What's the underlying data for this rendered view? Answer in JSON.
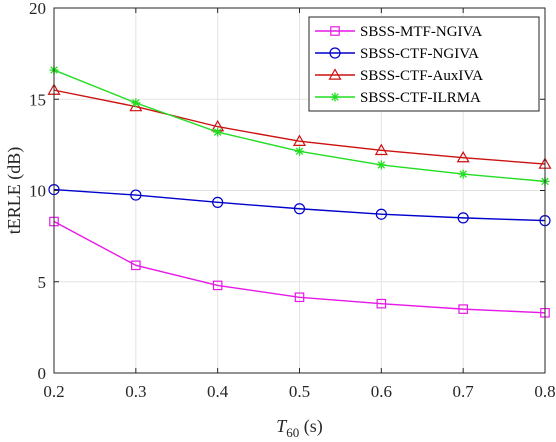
{
  "chart_data": {
    "type": "line",
    "title": "",
    "xlabel_main": "T",
    "xlabel_sub": "60",
    "xlabel_unit": " (s)",
    "ylabel": "tERLE (dB)",
    "xlim": [
      0.2,
      0.8
    ],
    "ylim": [
      0,
      20
    ],
    "xticks": [
      "0.2",
      "0.3",
      "0.4",
      "0.5",
      "0.6",
      "0.7",
      "0.8"
    ],
    "yticks": [
      "0",
      "5",
      "10",
      "15",
      "20"
    ],
    "grid": true,
    "legend_position": "top-right",
    "x": [
      0.2,
      0.3,
      0.4,
      0.5,
      0.6,
      0.7,
      0.8
    ],
    "series": [
      {
        "name": "SBSS-MTF-NGIVA",
        "values": [
          8.3,
          5.9,
          4.8,
          4.15,
          3.8,
          3.5,
          3.3
        ],
        "color": "#e619e6",
        "marker": "square"
      },
      {
        "name": "SBSS-CTF-NGIVA",
        "values": [
          10.05,
          9.75,
          9.35,
          9.0,
          8.7,
          8.5,
          8.35
        ],
        "color": "#0000cc",
        "marker": "circle"
      },
      {
        "name": "SBSS-CTF-AuxIVA",
        "values": [
          15.5,
          14.6,
          13.5,
          12.7,
          12.2,
          11.8,
          11.45
        ],
        "color": "#cc1111",
        "marker": "triangle"
      },
      {
        "name": "SBSS-CTF-ILRMA",
        "values": [
          16.6,
          14.8,
          13.2,
          12.15,
          11.4,
          10.9,
          10.5
        ],
        "color": "#22dd22",
        "marker": "asterisk"
      }
    ]
  }
}
